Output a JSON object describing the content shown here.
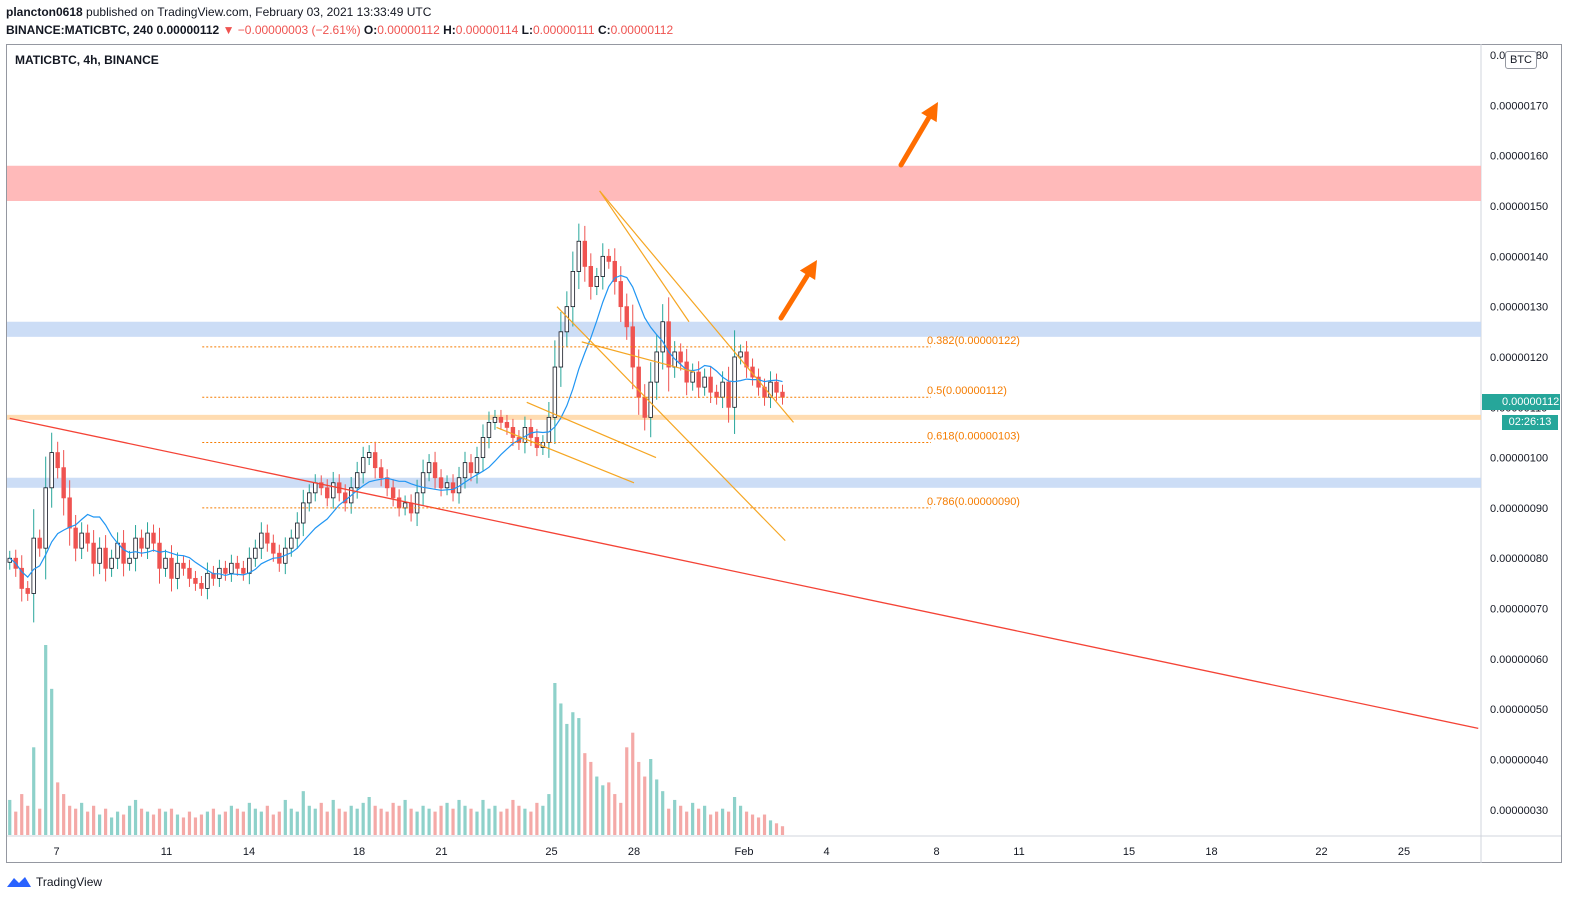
{
  "header": {
    "author": "plancton0618",
    "published": "published on TradingView.com, February 03, 2021 13:33:49 UTC",
    "symbol_line": "BINANCE:MATICBTC, 240",
    "last": "0.00000112",
    "change": "−0.00000003 (−2.61%)",
    "o_label": "O:",
    "o": "0.00000112",
    "h_label": "H:",
    "h": "0.00000114",
    "l_label": "L:",
    "l": "0.00000111",
    "c_label": "C:",
    "c": "0.00000112"
  },
  "chart_title": "MATICBTC, 4h, BINANCE",
  "currency_badge": "BTC",
  "price_tag": "0.00000112",
  "countdown_tag": "02:26:13",
  "brand": "TradingView",
  "colors": {
    "up": "#26a69a",
    "down": "#ef5350",
    "fib": "#f57c00",
    "trend": "#f44336",
    "channel": "#f5a623",
    "ma": "#2196f3",
    "resistance_zone": "#ffb3b3",
    "support_zone_blue": "#c6d9f5",
    "support_zone_orange": "#ffd8a8",
    "arrow": "#ff6d00"
  },
  "chart_data": {
    "type": "candlestick",
    "title": "MATICBTC, 4h, BINANCE",
    "y_unit": "BTC",
    "y_range": [
      2.5e-07,
      1.82e-06
    ],
    "y_ticks": [
      "0.00000030",
      "0.00000040",
      "0.00000050",
      "0.00000060",
      "0.00000070",
      "0.00000080",
      "0.00000090",
      "0.00000100",
      "0.00000110",
      "0.00000120",
      "0.00000130",
      "0.00000140",
      "0.00000150",
      "0.00000160",
      "0.00000170",
      "0.00000180"
    ],
    "x_ticks": [
      {
        "label": "7",
        "day": 7
      },
      {
        "label": "11",
        "day": 11
      },
      {
        "label": "14",
        "day": 14
      },
      {
        "label": "18",
        "day": 18
      },
      {
        "label": "21",
        "day": 21
      },
      {
        "label": "25",
        "day": 25
      },
      {
        "label": "28",
        "day": 28
      },
      {
        "label": "Feb",
        "day": 32
      },
      {
        "label": "4",
        "day": 35
      },
      {
        "label": "8",
        "day": 39
      },
      {
        "label": "11",
        "day": 42
      },
      {
        "label": "15",
        "day": 46
      },
      {
        "label": "18",
        "day": 49
      },
      {
        "label": "22",
        "day": 53
      },
      {
        "label": "25",
        "day": 56
      }
    ],
    "x_day_range": [
      5.2,
      58.8
    ],
    "fib_levels": [
      {
        "label": "0.382(0.00000122)",
        "value": 1.22e-06
      },
      {
        "label": "0.5(0.00000112)",
        "value": 1.12e-06
      },
      {
        "label": "0.618(0.00000103)",
        "value": 1.03e-06
      },
      {
        "label": "0.786(0.00000090)",
        "value": 9e-07
      }
    ],
    "zones": [
      {
        "name": "resistance",
        "from": 1.51e-06,
        "to": 1.58e-06,
        "color": "#ffb3b3"
      },
      {
        "name": "support-upper",
        "from": 1.24e-06,
        "to": 1.27e-06,
        "color": "#c6d9f5"
      },
      {
        "name": "support-mid",
        "from": 1.075e-06,
        "to": 1.085e-06,
        "color": "#ffd8a8"
      },
      {
        "name": "support-lower",
        "from": 9.4e-07,
        "to": 9.6e-07,
        "color": "#c6d9f5"
      }
    ],
    "closes": [
      8e-07,
      7.8e-07,
      7.4e-07,
      7.3e-07,
      8.4e-07,
      8.2e-07,
      9.4e-07,
      1.01e-06,
      9.8e-07,
      9.2e-07,
      8.6e-07,
      8.2e-07,
      8.5e-07,
      8.3e-07,
      7.9e-07,
      8.2e-07,
      7.8e-07,
      8e-07,
      8.3e-07,
      7.9e-07,
      8e-07,
      8.4e-07,
      8.2e-07,
      8.5e-07,
      8.3e-07,
      7.8e-07,
      8e-07,
      7.6e-07,
      7.9e-07,
      7.8e-07,
      7.6e-07,
      7.5e-07,
      7.4e-07,
      7.7e-07,
      7.6e-07,
      7.8e-07,
      7.7e-07,
      7.9e-07,
      7.8e-07,
      7.7e-07,
      8e-07,
      8.2e-07,
      8.5e-07,
      8.3e-07,
      8.1e-07,
      7.9e-07,
      8.2e-07,
      8.4e-07,
      8.7e-07,
      9.1e-07,
      9.3e-07,
      9.5e-07,
      9.4e-07,
      9.2e-07,
      9.5e-07,
      9.3e-07,
      9.1e-07,
      9.4e-07,
      9.7e-07,
      1e-06,
      1.01e-06,
      9.8e-07,
      9.6e-07,
      9.4e-07,
      9.2e-07,
      9e-07,
      9.1e-07,
      8.9e-07,
      9.3e-07,
      9.7e-07,
      9.9e-07,
      9.6e-07,
      9.4e-07,
      9.5e-07,
      9.3e-07,
      9.6e-07,
      9.9e-07,
      9.7e-07,
      1e-06,
      1.04e-06,
      1.07e-06,
      1.08e-06,
      1.07e-06,
      1.06e-06,
      1.04e-06,
      1.03e-06,
      1.06e-06,
      1.04e-06,
      1.02e-06,
      1.03e-06,
      1.08e-06,
      1.18e-06,
      1.25e-06,
      1.3e-06,
      1.37e-06,
      1.43e-06,
      1.38e-06,
      1.34e-06,
      1.36e-06,
      1.4e-06,
      1.39e-06,
      1.35e-06,
      1.3e-06,
      1.26e-06,
      1.18e-06,
      1.12e-06,
      1.08e-06,
      1.15e-06,
      1.21e-06,
      1.27e-06,
      1.18e-06,
      1.21e-06,
      1.19e-06,
      1.15e-06,
      1.17e-06,
      1.14e-06,
      1.16e-06,
      1.13e-06,
      1.12e-06,
      1.15e-06,
      1.1e-06,
      1.2e-06,
      1.21e-06,
      1.18e-06,
      1.16e-06,
      1.14e-06,
      1.12e-06,
      1.15e-06,
      1.13e-06,
      1.12e-06
    ],
    "volumes": [
      12,
      8,
      14,
      10,
      30,
      9,
      65,
      50,
      18,
      14,
      10,
      9,
      11,
      8,
      10,
      7,
      9,
      6,
      8,
      7,
      10,
      12,
      9,
      8,
      7,
      9,
      8,
      9,
      7,
      6,
      8,
      6,
      7,
      8,
      9,
      7,
      8,
      10,
      9,
      8,
      11,
      9,
      8,
      10,
      7,
      8,
      12,
      9,
      8,
      15,
      10,
      9,
      11,
      8,
      12,
      9,
      8,
      10,
      9,
      11,
      13,
      10,
      9,
      8,
      11,
      10,
      12,
      9,
      8,
      10,
      9,
      8,
      10,
      11,
      9,
      12,
      10,
      9,
      8,
      12,
      9,
      10,
      8,
      9,
      12,
      10,
      9,
      8,
      11,
      10,
      14,
      52,
      45,
      38,
      42,
      40,
      28,
      25,
      20,
      17,
      18,
      14,
      11,
      30,
      35,
      25,
      20,
      26,
      19,
      15,
      9,
      12,
      10,
      8,
      11,
      9,
      10,
      7,
      8,
      9,
      8,
      13,
      10,
      8,
      7,
      6,
      7,
      5,
      4,
      3
    ]
  }
}
